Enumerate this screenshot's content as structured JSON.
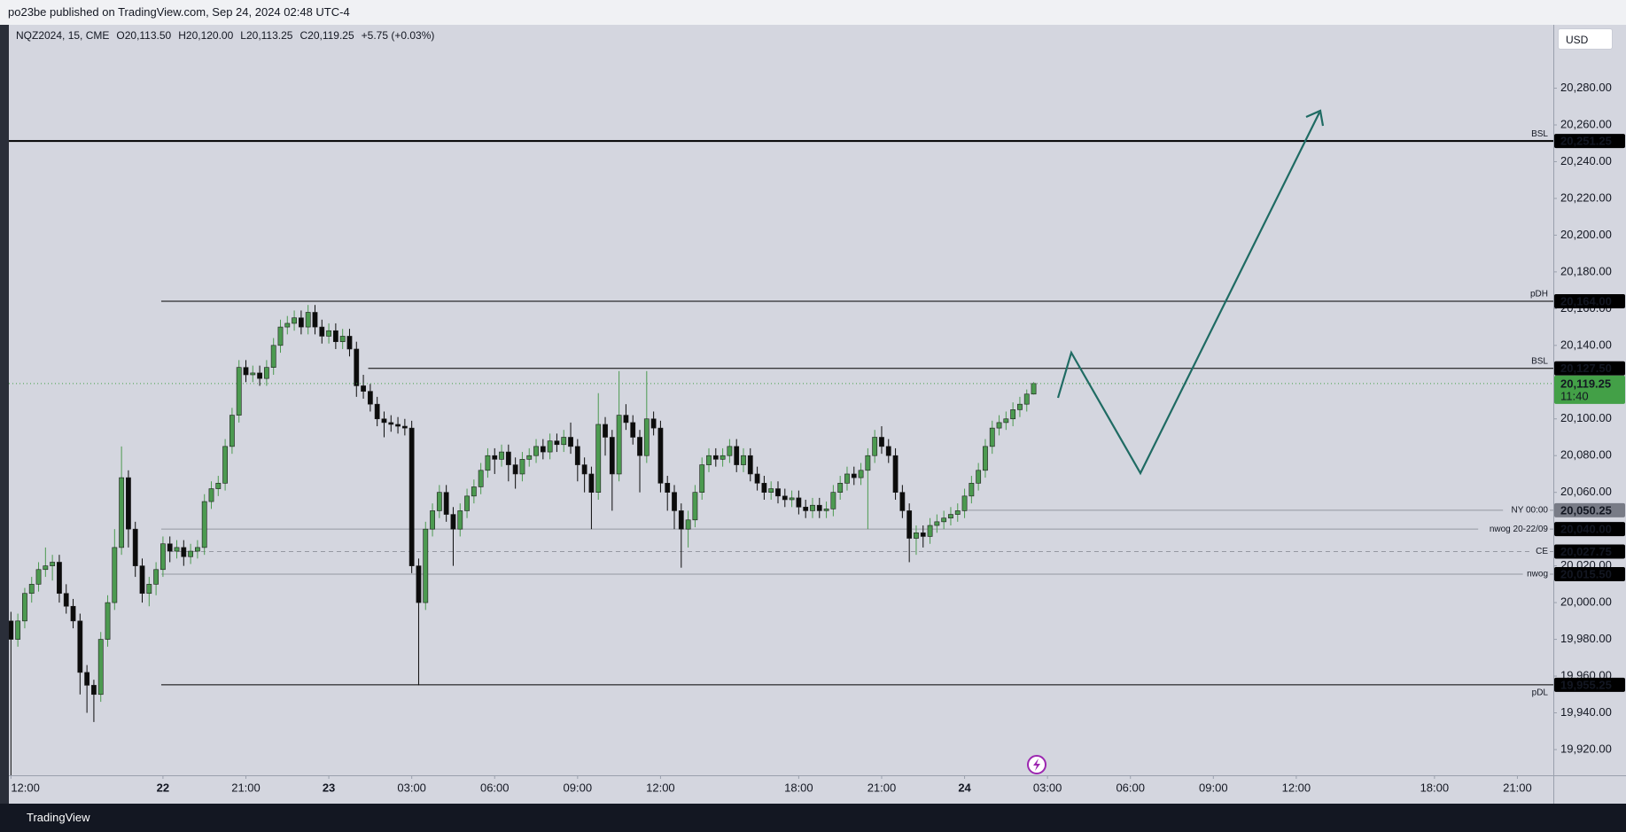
{
  "header": {
    "title": "po23be published on TradingView.com, Sep 24, 2024 02:48 UTC-4"
  },
  "footer": {
    "brand": "TradingView"
  },
  "chart_data": {
    "type": "candlestick",
    "legend": {
      "symbol": "NQZ2024, 15, CME",
      "items": [
        {
          "key": "O",
          "value": "20,113.50"
        },
        {
          "key": "H",
          "value": "20,120.00"
        },
        {
          "key": "L",
          "value": "20,113.25"
        },
        {
          "key": "C",
          "value": "20,119.25"
        }
      ],
      "change": "+5.75 (+0.03%)"
    },
    "currency": "USD",
    "up_color": "#4c9a50",
    "down_color": "#0c0c0c",
    "grid": false,
    "xlim": [
      -0.3,
      223.2
    ],
    "ylim": [
      19906,
      20314.5
    ],
    "xticks": [
      {
        "value": 0,
        "label": "12:00"
      },
      {
        "value": 22,
        "label": "22"
      },
      {
        "value": 34,
        "label": "21:00"
      },
      {
        "value": 46,
        "label": "23"
      },
      {
        "value": 58,
        "label": "03:00"
      },
      {
        "value": 70,
        "label": "06:00"
      },
      {
        "value": 82,
        "label": "09:00"
      },
      {
        "value": 94,
        "label": "12:00"
      },
      {
        "value": 114,
        "label": "18:00"
      },
      {
        "value": 126,
        "label": "21:00"
      },
      {
        "value": 138,
        "label": "24"
      },
      {
        "value": 150,
        "label": "03:00"
      },
      {
        "value": 162,
        "label": "06:00"
      },
      {
        "value": 174,
        "label": "09:00"
      },
      {
        "value": 186,
        "label": "12:00"
      },
      {
        "value": 206,
        "label": "18:00"
      },
      {
        "value": 218,
        "label": "21:00"
      }
    ],
    "yticks": [
      {
        "value": 19920,
        "label": "19,920.00"
      },
      {
        "value": 19940,
        "label": "19,940.00"
      },
      {
        "value": 19960,
        "label": "19,960.00"
      },
      {
        "value": 19980,
        "label": "19,980.00"
      },
      {
        "value": 20000,
        "label": "20,000.00"
      },
      {
        "value": 20020,
        "label": "20,020.00"
      },
      {
        "value": 20040,
        "label": "20,040.00"
      },
      {
        "value": 20060,
        "label": "20,060.00"
      },
      {
        "value": 20080,
        "label": "20,080.00"
      },
      {
        "value": 20100,
        "label": "20,100.00"
      },
      {
        "value": 20120,
        "label": "20,120.00"
      },
      {
        "value": 20140,
        "label": "20,140.00"
      },
      {
        "value": 20160,
        "label": "20,160.00"
      },
      {
        "value": 20180,
        "label": "20,180.00"
      },
      {
        "value": 20200,
        "label": "20,200.00"
      },
      {
        "value": 20220,
        "label": "20,220.00"
      },
      {
        "value": 20240,
        "label": "20,240.00"
      },
      {
        "value": 20260,
        "label": "20,260.00"
      },
      {
        "value": 20280,
        "label": "20,280.00"
      }
    ],
    "levels": [
      {
        "name": "BSL",
        "value": 20251.25,
        "label": "20,251.25",
        "start": -0.3,
        "color": "#000000",
        "width": 2,
        "style": "solid",
        "name_color": "#131722",
        "badge": "#000000",
        "name_pos": "above"
      },
      {
        "name": "pDH",
        "value": 20164,
        "label": "20,164.00",
        "start": 21.75,
        "color": "#000000",
        "width": 1,
        "style": "solid",
        "name_color": "#131722",
        "badge": "#000000",
        "name_pos": "above"
      },
      {
        "name": "BSL",
        "value": 20127.5,
        "label": "20,127.50",
        "start": 51.7,
        "color": "#000000",
        "width": 1,
        "style": "solid",
        "name_color": "#131722",
        "badge": "#000000",
        "name_pos": "above"
      },
      {
        "name": "NY 00:00",
        "value": 20050.25,
        "label": "20,050.25",
        "start": 138.5,
        "color": "#9598a1",
        "width": 1,
        "style": "solid",
        "name_color": "#2962ff",
        "badge": "#787b86",
        "name_pos": "on"
      },
      {
        "name": "nwog 20-22/09",
        "value": 20040,
        "label": "20,040.00",
        "start": 21.75,
        "color": "#9598a1",
        "width": 1,
        "style": "solid",
        "name_color": "#787b86",
        "badge": "#000000",
        "name_pos": "on"
      },
      {
        "name": "CE",
        "value": 20027.75,
        "label": "20,027.75",
        "start": 21.75,
        "color": "#9598a1",
        "width": 1,
        "style": "dashed",
        "name_color": "#787b86",
        "badge": "#000000",
        "name_pos": "on"
      },
      {
        "name": "nwog",
        "value": 20015.5,
        "label": "20,015.50",
        "start": 21.75,
        "color": "#9598a1",
        "width": 1,
        "style": "solid",
        "name_color": "#787b86",
        "badge": "#000000",
        "name_pos": "on"
      },
      {
        "name": "pDL",
        "value": 19955.25,
        "label": "19,955.25",
        "start": 21.75,
        "color": "#000000",
        "width": 1,
        "style": "solid",
        "name_color": "#131722",
        "badge": "#000000",
        "name_pos": "below"
      }
    ],
    "last": {
      "value": 20119.25,
      "label": "20,119.25",
      "countdown": "11:40",
      "color": "#43a047"
    },
    "ohlc": [
      [
        19990,
        19995,
        19900,
        19980
      ],
      [
        19980,
        19994,
        19976,
        19990
      ],
      [
        19990,
        20008,
        19986,
        20005
      ],
      [
        20005,
        20014,
        20000,
        20010
      ],
      [
        20010,
        20022,
        20006,
        20018
      ],
      [
        20018,
        20030,
        20014,
        20020
      ],
      [
        20020,
        20026,
        20012,
        20022
      ],
      [
        20022,
        20026,
        20000,
        20005
      ],
      [
        20005,
        20010,
        19994,
        19998
      ],
      [
        19998,
        20002,
        19986,
        19990
      ],
      [
        19990,
        19994,
        19950,
        19962
      ],
      [
        19962,
        19966,
        19940,
        19955
      ],
      [
        19955,
        19958,
        19935,
        19950
      ],
      [
        19950,
        19984,
        19946,
        19980
      ],
      [
        19980,
        20004,
        19976,
        20000
      ],
      [
        20000,
        20040,
        19996,
        20030
      ],
      [
        20030,
        20085,
        20026,
        20068
      ],
      [
        20068,
        20072,
        20030,
        20040
      ],
      [
        20040,
        20044,
        20014,
        20020
      ],
      [
        20020,
        20024,
        20000,
        20005
      ],
      [
        20005,
        20014,
        19998,
        20010
      ],
      [
        20010,
        20022,
        20004,
        20018
      ],
      [
        20018,
        20036,
        20014,
        20032
      ],
      [
        20032,
        20036,
        20022,
        20028
      ],
      [
        20028,
        20034,
        20024,
        20030
      ],
      [
        20030,
        20034,
        20020,
        20025
      ],
      [
        20025,
        20032,
        20021,
        20028
      ],
      [
        20028,
        20034,
        20024,
        20030
      ],
      [
        20030,
        20059,
        20026,
        20055
      ],
      [
        20055,
        20066,
        20051,
        20062
      ],
      [
        20062,
        20069,
        20058,
        20065
      ],
      [
        20065,
        20089,
        20061,
        20085
      ],
      [
        20085,
        20106,
        20081,
        20102
      ],
      [
        20102,
        20132,
        20098,
        20128
      ],
      [
        20128,
        20132,
        20120,
        20124
      ],
      [
        20124,
        20129,
        20120,
        20125
      ],
      [
        20125,
        20129,
        20118,
        20122
      ],
      [
        20122,
        20132,
        20118,
        20128
      ],
      [
        20128,
        20144,
        20124,
        20140
      ],
      [
        20140,
        20154,
        20136,
        20150
      ],
      [
        20150,
        20156,
        20146,
        20152
      ],
      [
        20152,
        20159,
        20148,
        20155
      ],
      [
        20155,
        20159,
        20146,
        20150
      ],
      [
        20150,
        20162,
        20146,
        20158
      ],
      [
        20158,
        20162,
        20146,
        20150
      ],
      [
        20150,
        20154,
        20141,
        20145
      ],
      [
        20145,
        20152,
        20141,
        20148
      ],
      [
        20148,
        20152,
        20138,
        20142
      ],
      [
        20142,
        20149,
        20138,
        20145
      ],
      [
        20145,
        20149,
        20134,
        20138
      ],
      [
        20138,
        20142,
        20112,
        20118
      ],
      [
        20118,
        20124,
        20111,
        20115
      ],
      [
        20115,
        20119,
        20104,
        20108
      ],
      [
        20108,
        20112,
        20096,
        20100
      ],
      [
        20100,
        20104,
        20090,
        20098
      ],
      [
        20098,
        20102,
        20093,
        20097
      ],
      [
        20097,
        20101,
        20092,
        20096
      ],
      [
        20096,
        20100,
        20091,
        20095
      ],
      [
        20095,
        20099,
        20016,
        20020
      ],
      [
        20020,
        20024,
        19955,
        20000
      ],
      [
        20000,
        20044,
        19996,
        20040
      ],
      [
        20040,
        20054,
        20036,
        20050
      ],
      [
        20050,
        20064,
        20046,
        20060
      ],
      [
        20060,
        20064,
        20044,
        20048
      ],
      [
        20048,
        20052,
        20020,
        20040
      ],
      [
        20040,
        20054,
        20036,
        20050
      ],
      [
        20050,
        20062,
        20046,
        20058
      ],
      [
        20058,
        20067,
        20054,
        20063
      ],
      [
        20063,
        20076,
        20059,
        20072
      ],
      [
        20072,
        20084,
        20068,
        20080
      ],
      [
        20080,
        20084,
        20070,
        20078
      ],
      [
        20078,
        20086,
        20074,
        20082
      ],
      [
        20082,
        20086,
        20066,
        20075
      ],
      [
        20075,
        20079,
        20062,
        20070
      ],
      [
        20070,
        20082,
        20066,
        20078
      ],
      [
        20078,
        20084,
        20074,
        20080
      ],
      [
        20080,
        20089,
        20076,
        20085
      ],
      [
        20085,
        20089,
        20078,
        20082
      ],
      [
        20082,
        20092,
        20078,
        20088
      ],
      [
        20088,
        20092,
        20082,
        20086
      ],
      [
        20086,
        20094,
        20082,
        20090
      ],
      [
        20090,
        20098,
        20081,
        20085
      ],
      [
        20085,
        20089,
        20066,
        20075
      ],
      [
        20075,
        20079,
        20060,
        20070
      ],
      [
        20070,
        20074,
        20040,
        20060
      ],
      [
        20060,
        20114,
        20056,
        20097
      ],
      [
        20097,
        20101,
        20080,
        20090
      ],
      [
        20090,
        20094,
        20050,
        20070
      ],
      [
        20070,
        20126,
        20066,
        20102
      ],
      [
        20102,
        20108,
        20094,
        20098
      ],
      [
        20098,
        20102,
        20086,
        20090
      ],
      [
        20090,
        20094,
        20060,
        20080
      ],
      [
        20080,
        20126,
        20076,
        20100
      ],
      [
        20100,
        20104,
        20091,
        20095
      ],
      [
        20095,
        20099,
        20060,
        20065
      ],
      [
        20065,
        20069,
        20050,
        20060
      ],
      [
        20060,
        20064,
        20040,
        20050
      ],
      [
        20050,
        20054,
        20019,
        20040
      ],
      [
        20040,
        20050,
        20030,
        20045
      ],
      [
        20045,
        20064,
        20041,
        20060
      ],
      [
        20060,
        20079,
        20056,
        20075
      ],
      [
        20075,
        20084,
        20071,
        20080
      ],
      [
        20080,
        20084,
        20074,
        20078
      ],
      [
        20078,
        20084,
        20074,
        20080
      ],
      [
        20080,
        20089,
        20076,
        20085
      ],
      [
        20085,
        20089,
        20071,
        20075
      ],
      [
        20075,
        20084,
        20071,
        20080
      ],
      [
        20080,
        20084,
        20066,
        20070
      ],
      [
        20070,
        20074,
        20061,
        20065
      ],
      [
        20065,
        20069,
        20056,
        20060
      ],
      [
        20060,
        20066,
        20056,
        20062
      ],
      [
        20062,
        20066,
        20054,
        20058
      ],
      [
        20058,
        20062,
        20052,
        20056
      ],
      [
        20056,
        20061,
        20052,
        20057
      ],
      [
        20057,
        20061,
        20048,
        20052
      ],
      [
        20052,
        20056,
        20046,
        20050
      ],
      [
        20050,
        20057,
        20046,
        20053
      ],
      [
        20053,
        20057,
        20046,
        20050
      ],
      [
        20050,
        20055,
        20046,
        20051
      ],
      [
        20051,
        20064,
        20047,
        20060
      ],
      [
        20060,
        20069,
        20056,
        20065
      ],
      [
        20065,
        20074,
        20061,
        20070
      ],
      [
        20070,
        20074,
        20064,
        20068
      ],
      [
        20068,
        20076,
        20064,
        20072
      ],
      [
        20072,
        20084,
        20040,
        20080
      ],
      [
        20080,
        20094,
        20076,
        20090
      ],
      [
        20090,
        20096,
        20081,
        20085
      ],
      [
        20085,
        20089,
        20076,
        20080
      ],
      [
        20080,
        20084,
        20056,
        20060
      ],
      [
        20060,
        20064,
        20046,
        20050
      ],
      [
        20050,
        20054,
        20022,
        20035
      ],
      [
        20035,
        20042,
        20026,
        20038
      ],
      [
        20038,
        20042,
        20030,
        20036
      ],
      [
        20036,
        20046,
        20032,
        20042
      ],
      [
        20042,
        20048,
        20038,
        20044
      ],
      [
        20044,
        20050,
        20040,
        20046
      ],
      [
        20046,
        20052,
        20042,
        20048
      ],
      [
        20048,
        20054,
        20044,
        20050
      ],
      [
        20050,
        20062,
        20046,
        20058
      ],
      [
        20058,
        20069,
        20054,
        20065
      ],
      [
        20065,
        20076,
        20061,
        20072
      ],
      [
        20072,
        20089,
        20068,
        20085
      ],
      [
        20085,
        20099,
        20081,
        20095
      ],
      [
        20095,
        20102,
        20091,
        20098
      ],
      [
        20098,
        20104,
        20094,
        20100
      ],
      [
        20100,
        20109,
        20096,
        20105
      ],
      [
        20105,
        20112,
        20101,
        20108
      ],
      [
        20108,
        20116,
        20104,
        20113.5
      ],
      [
        20113.5,
        20120,
        20113.25,
        20119.25
      ]
    ]
  }
}
